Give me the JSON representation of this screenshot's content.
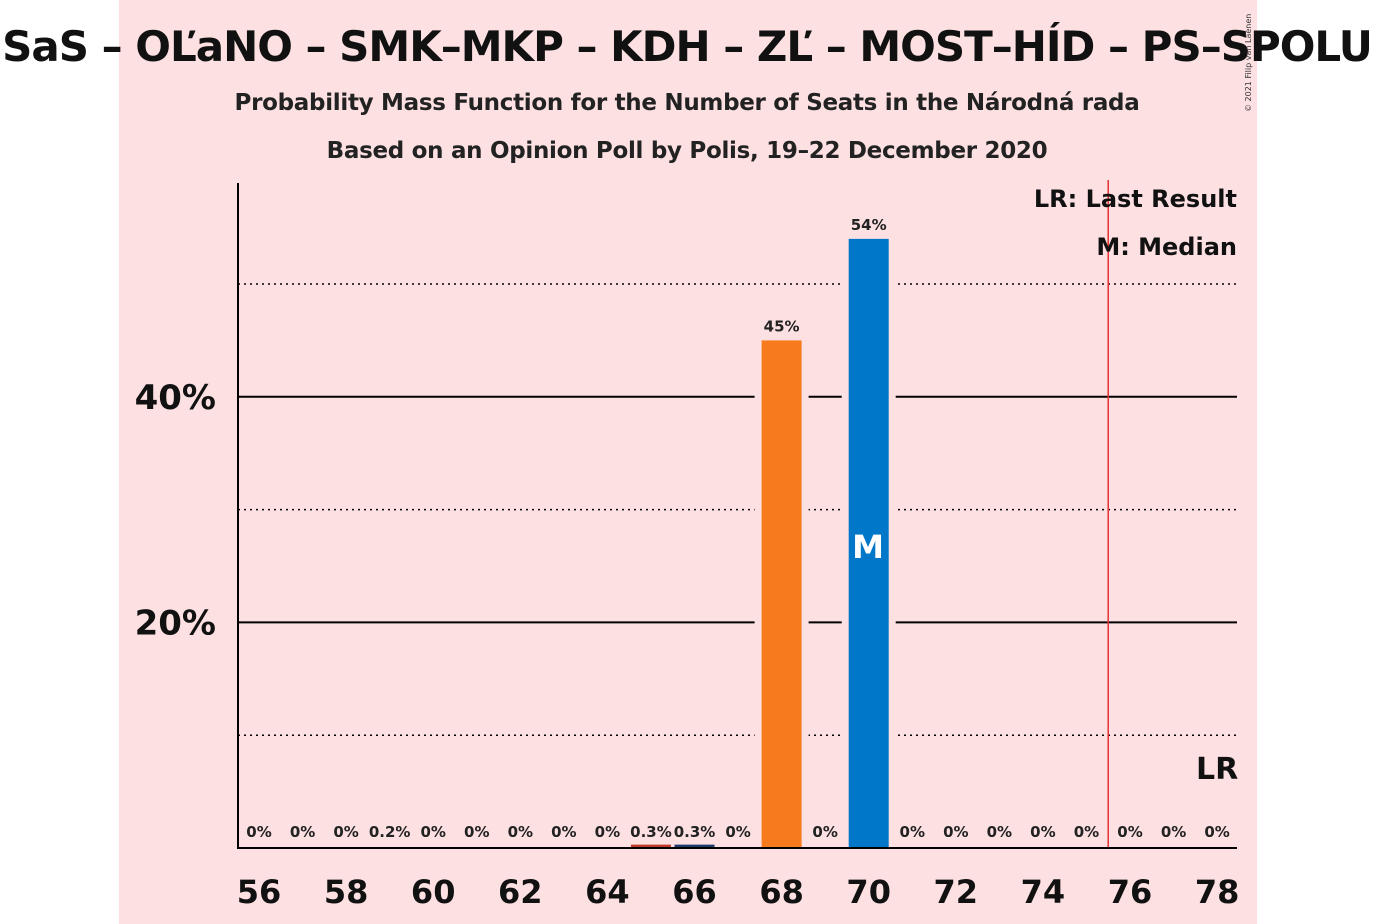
{
  "chart_data": {
    "type": "bar",
    "title": "SaS – OĽaNO – SMK–MKP – KDH – ZĽ – MOST–HÍD – PS–SPOLU",
    "subtitle": "Probability Mass Function for the Number of Seats in the Národná rada",
    "subtitle2": "Based on an Opinion Poll by Polis, 19–22 December 2020",
    "copyright": "© 2021 Filip van Laenen",
    "x": [
      56,
      57,
      58,
      59,
      60,
      61,
      62,
      63,
      64,
      65,
      66,
      67,
      68,
      69,
      70,
      71,
      72,
      73,
      74,
      75,
      76,
      77,
      78
    ],
    "x_tick_labels": [
      "56",
      "58",
      "60",
      "62",
      "64",
      "66",
      "68",
      "70",
      "72",
      "74",
      "76",
      "78"
    ],
    "values": [
      0,
      0,
      0,
      0.2,
      0,
      0,
      0,
      0,
      0,
      0.3,
      0.3,
      0,
      45,
      0,
      54,
      0,
      0,
      0,
      0,
      0,
      0,
      0,
      0
    ],
    "data_labels": [
      "0%",
      "0%",
      "0%",
      "0.2%",
      "0%",
      "0%",
      "0%",
      "0%",
      "0%",
      "0.3%",
      "0.3%",
      "0%",
      "45%",
      "0%",
      "54%",
      "0%",
      "0%",
      "0%",
      "0%",
      "0%",
      "0%",
      "0%",
      "0%"
    ],
    "bar_colors": {
      "65": "#c0392b",
      "66": "#1b3a6b",
      "68": "#f77b1c",
      "70": "#0077c8"
    },
    "ylim": [
      0,
      59
    ],
    "y_ticks_major": [
      20,
      40
    ],
    "y_tick_labels": [
      "20%",
      "40%"
    ],
    "y_ticks_minor": [
      10,
      30,
      50
    ],
    "grid": true,
    "last_result": 75.5,
    "median": 70,
    "legend": {
      "lr": "LR: Last Result",
      "m": "M: Median",
      "lr_mark": "LR",
      "m_mark": "M"
    },
    "colors": {
      "band": "#fde0e2",
      "last_result_line": "#e8302f",
      "axis": "#000000"
    }
  }
}
